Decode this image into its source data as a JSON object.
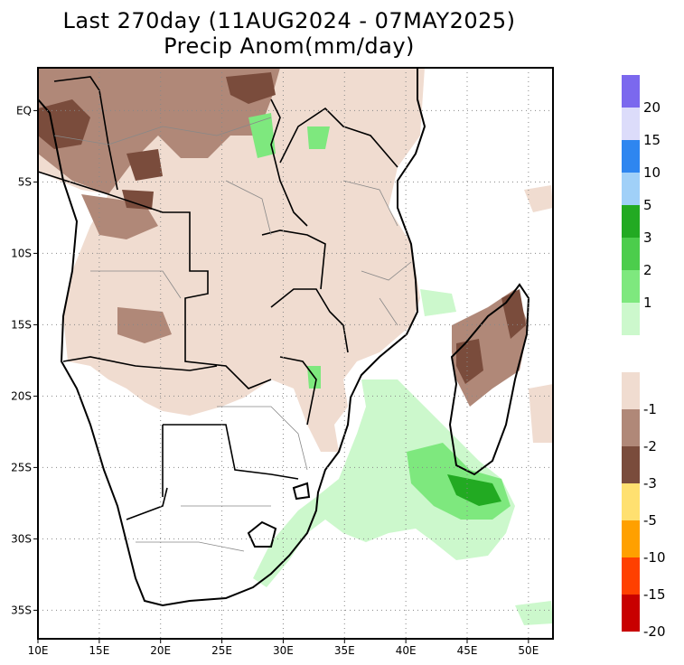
{
  "title": {
    "line1": "Last 270day (11AUG2024 - 07MAY2025)",
    "line2": "Precip Anom(mm/day)"
  },
  "axes": {
    "lon": {
      "range": [
        10,
        52
      ],
      "ticks": [
        "10E",
        "15E",
        "20E",
        "25E",
        "30E",
        "35E",
        "40E",
        "45E",
        "50E"
      ],
      "values": [
        10,
        15,
        20,
        25,
        30,
        35,
        40,
        45,
        50
      ]
    },
    "lat": {
      "range": [
        -37,
        3
      ],
      "ticks": [
        "EQ",
        "5S",
        "10S",
        "15S",
        "20S",
        "25S",
        "30S",
        "35S"
      ],
      "values": [
        0,
        -5,
        -10,
        -15,
        -20,
        -25,
        -30,
        -35
      ]
    },
    "grid": true
  },
  "colorbar_positive": {
    "colors": [
      "#7b68ee",
      "#dcdcfa",
      "#2e86f0",
      "#a0d0f8",
      "#22aa22",
      "#4ccd4c",
      "#7ee87e",
      "#ccf8cc"
    ],
    "labels": [
      "20",
      "15",
      "10",
      "5",
      "3",
      "2",
      "1"
    ]
  },
  "colorbar_negative": {
    "colors": [
      "#f0dcd0",
      "#b08878",
      "#7a4c3c",
      "#ffe070",
      "#ffa000",
      "#ff4000",
      "#c80000"
    ],
    "labels": [
      "-1",
      "-2",
      "-3",
      "-5",
      "-10",
      "-15",
      "-20"
    ]
  },
  "colors": {
    "dry_light": "#f0dcd0",
    "dry_mid": "#b08878",
    "dry_dark": "#7a4c3c",
    "wet_light": "#ccf8cc",
    "wet_mid": "#7ee87e",
    "wet_dark": "#22aa22"
  }
}
